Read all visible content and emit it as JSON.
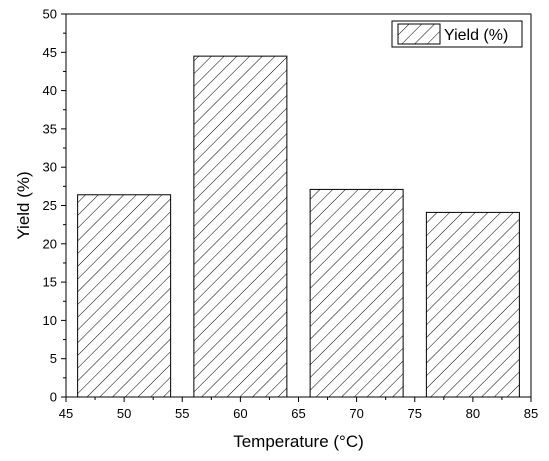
{
  "chart_data": {
    "type": "bar",
    "xlabel": "Temperature (°C)",
    "ylabel": "Yield (%)",
    "xlim": [
      45,
      85
    ],
    "ylim": [
      0,
      50
    ],
    "x_ticks": [
      45,
      50,
      55,
      60,
      65,
      70,
      75,
      80,
      85
    ],
    "y_ticks": [
      0,
      5,
      10,
      15,
      20,
      25,
      30,
      35,
      40,
      45,
      50
    ],
    "bar_width": 8,
    "legend_position": "top-right",
    "grid": false,
    "series": [
      {
        "name": "Yield (%)",
        "fill": "hatched",
        "x": [
          50,
          60,
          70,
          80
        ],
        "values": [
          26.4,
          44.5,
          27.1,
          24.1
        ]
      }
    ]
  }
}
